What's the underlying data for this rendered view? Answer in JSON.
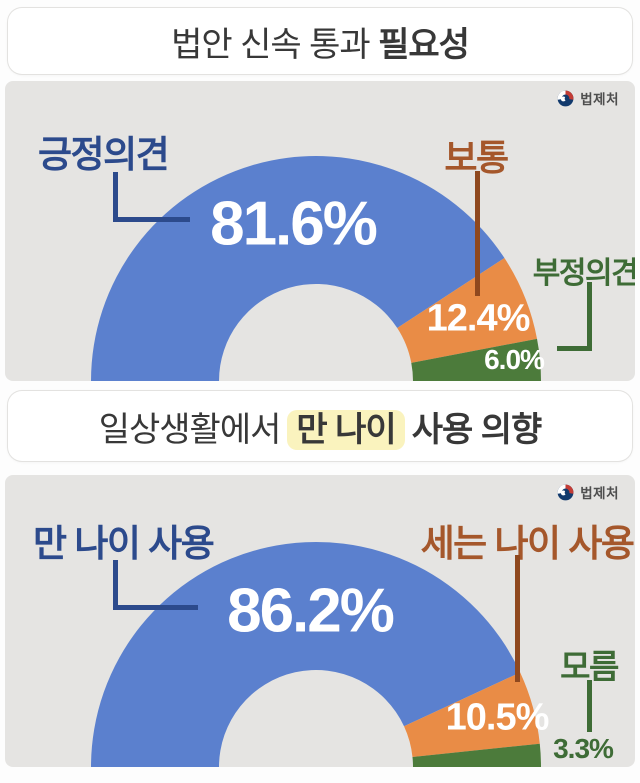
{
  "source_logo_text": "법제처",
  "styles": {
    "accent_blue": "#5B80CE",
    "accent_orange": "#E98C46",
    "accent_green": "#4C7B3B",
    "highlight_yellow": "#FAF3BE",
    "panel_gray": "#E5E4E2",
    "title_color": "#383838"
  },
  "chart_data": [
    {
      "type": "donut",
      "variant": "semicircle-bottom-anchored",
      "title": "법안 신속 통과 필요성",
      "title_parts": {
        "normal": "법안 신속 통과 ",
        "bold": "필요성"
      },
      "categories": [
        "긍정의견",
        "보통",
        "부정의견"
      ],
      "values": [
        81.6,
        12.4,
        6.0
      ],
      "value_labels": [
        "81.6%",
        "12.4%",
        "6.0%"
      ],
      "colors": [
        "#5B80CE",
        "#E98C46",
        "#4C7B3B"
      ],
      "label_colors": [
        "#2C4A8C",
        "#A5572B",
        "#3E6C36"
      ],
      "unit": "%",
      "total": 100,
      "legend": "callout-labels",
      "source": "법제처"
    },
    {
      "type": "donut",
      "variant": "semicircle-bottom-anchored",
      "title": "일상생활에서 만 나이 사용 의향",
      "title_parts": {
        "normal": "일상생활에서",
        "highlight": "만 나이",
        "bold": "사용 의향"
      },
      "categories": [
        "만 나이 사용",
        "세는 나이 사용",
        "모름"
      ],
      "values": [
        86.2,
        10.5,
        3.3
      ],
      "value_labels": [
        "86.2%",
        "10.5%",
        "3.3%"
      ],
      "colors": [
        "#5B80CE",
        "#E98C46",
        "#4C7B3B"
      ],
      "label_colors": [
        "#2C4A8C",
        "#A5572B",
        "#3E6C36"
      ],
      "unit": "%",
      "total": 100,
      "legend": "callout-labels",
      "source": "법제처"
    }
  ]
}
